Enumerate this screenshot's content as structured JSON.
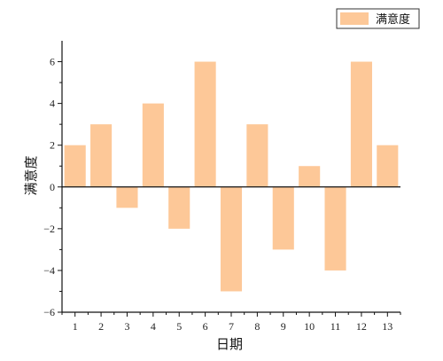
{
  "chart_data": {
    "type": "bar",
    "categories": [
      "1",
      "2",
      "3",
      "4",
      "5",
      "6",
      "7",
      "8",
      "9",
      "10",
      "11",
      "12",
      "13"
    ],
    "series": [
      {
        "name": "满意度",
        "values": [
          2,
          3,
          -1,
          4,
          -2,
          6,
          -5,
          3,
          -3,
          1,
          -4,
          6,
          2
        ]
      }
    ],
    "xlabel": "日期",
    "ylabel": "满意度",
    "ylim": [
      -6,
      7
    ],
    "yticks": [
      -6,
      -4,
      -2,
      0,
      2,
      4,
      6
    ],
    "legend": "top-right",
    "grid": false,
    "colors": {
      "bar": "#FDC898",
      "axis": "#111111"
    }
  }
}
